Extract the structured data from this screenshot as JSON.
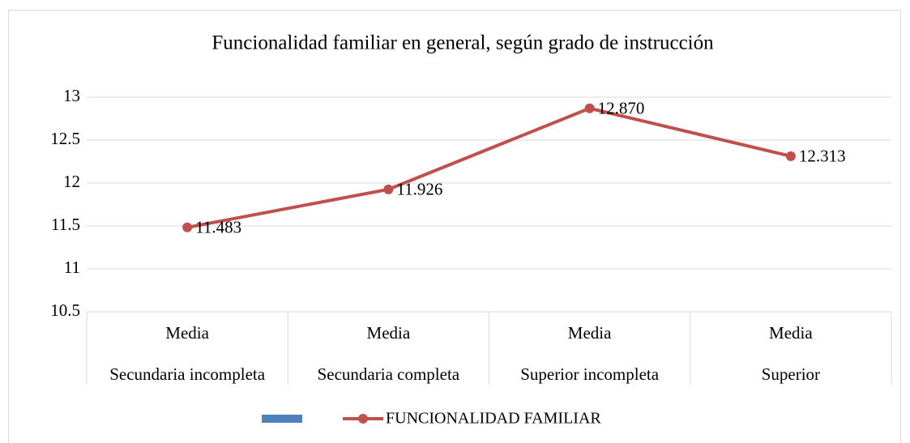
{
  "chart_data": {
    "type": "line",
    "title": "Funcionalidad familiar en general, según grado de instrucción",
    "categories": [
      [
        "Media",
        "Secundaria incompleta"
      ],
      [
        "Media",
        "Secundaria completa"
      ],
      [
        "Media",
        "Superior incompleta"
      ],
      [
        "Media",
        "Superior"
      ]
    ],
    "series": [
      {
        "name": "FUNCIONALIDAD FAMILIAR",
        "color": "#c0504d",
        "values": [
          11.483,
          11.926,
          12.87,
          12.313
        ],
        "value_labels": [
          "11.483",
          "11.926",
          "12.870",
          "12.313"
        ]
      }
    ],
    "ylim": [
      10.5,
      13
    ],
    "yticks": [
      10.5,
      11,
      11.5,
      12,
      12.5,
      13
    ],
    "grid": true,
    "legend": "bottom"
  }
}
